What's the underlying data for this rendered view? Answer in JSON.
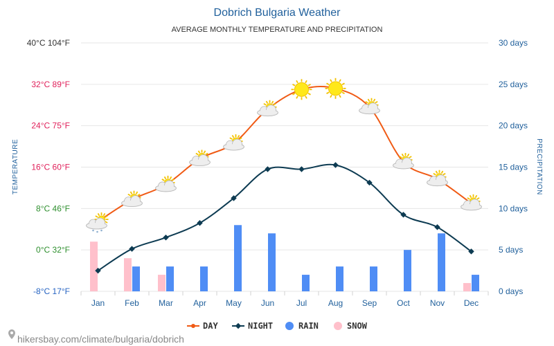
{
  "colors": {
    "day": "#f05a14",
    "night": "#0d3b52",
    "rain": "#4f8df5",
    "snow": "#ffc0cb",
    "grid": "#e6e6e6",
    "left_axis": [
      "#2563c2",
      "#2e8f2e",
      "#2e8f2e",
      "#e0205a",
      "#e0205a",
      "#e0205a"
    ]
  },
  "chart_data": {
    "type": "line",
    "title": "Dobrich Bulgaria Weather",
    "subtitle": "AVERAGE MONTHLY TEMPERATURE AND PRECIPITATION",
    "ylabel": "TEMPERATURE",
    "ylabel_right": "PRECIPITATION",
    "categories": [
      "Jan",
      "Feb",
      "Mar",
      "Apr",
      "May",
      "Jun",
      "Jul",
      "Aug",
      "Sep",
      "Oct",
      "Nov",
      "Dec"
    ],
    "ylim": [
      -8,
      40
    ],
    "ylim_right": [
      0,
      30
    ],
    "left_ticks": [
      "-8°C 17°F",
      "0°C 32°F",
      "8°C 46°F",
      "16°C 60°F",
      "24°C 75°F",
      "32°C 89°F",
      "40°C 104°F"
    ],
    "right_ticks": [
      "0 days",
      "5 days",
      "10 days",
      "15 days",
      "20 days",
      "25 days",
      "30 days"
    ],
    "grid": true,
    "legend_position": "bottom",
    "series": [
      {
        "name": "DAY",
        "type": "line",
        "axis": "left",
        "values": [
          5.5,
          9.7,
          12.6,
          17.6,
          20.6,
          27.2,
          31.0,
          31.2,
          27.6,
          17.0,
          13.7,
          9.0
        ]
      },
      {
        "name": "NIGHT",
        "type": "line",
        "axis": "left",
        "values": [
          -4.0,
          0.2,
          2.4,
          5.2,
          10.0,
          15.6,
          15.6,
          16.4,
          13.0,
          6.8,
          4.4,
          -0.3
        ]
      },
      {
        "name": "RAIN",
        "type": "bar",
        "axis": "right",
        "values": [
          0,
          3,
          3,
          3,
          8,
          7,
          2,
          3,
          3,
          5,
          7,
          2
        ]
      },
      {
        "name": "SNOW",
        "type": "bar",
        "axis": "right",
        "values": [
          6,
          4,
          2,
          0,
          0,
          0,
          0,
          0,
          0,
          0,
          0,
          1
        ]
      }
    ],
    "weather_icons": [
      "snow-cloud-icon",
      "partly-cloudy-icon",
      "partly-cloudy-icon",
      "partly-cloudy-icon",
      "partly-cloudy-icon",
      "partly-cloudy-icon",
      "sun-icon",
      "sun-icon",
      "partly-cloudy-icon",
      "partly-cloudy-icon",
      "partly-cloudy-icon",
      "partly-cloudy-icon"
    ]
  },
  "footer": {
    "credit": "hikersbay.com/climate/bulgaria/dobrich"
  }
}
